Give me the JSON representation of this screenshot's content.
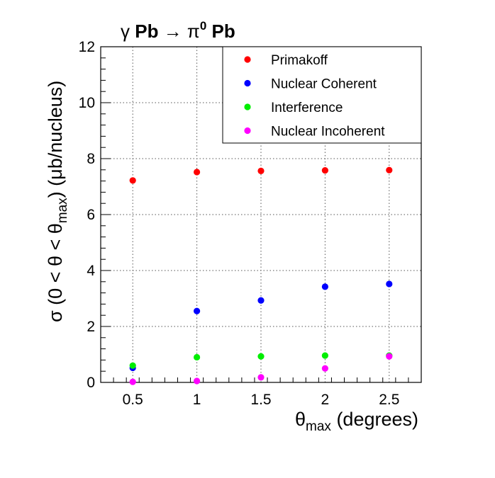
{
  "chart_data": {
    "type": "scatter",
    "title": {
      "part1": "γ",
      "part2": " Pb ",
      "arrow": "→",
      "pi": " π",
      "sup": "0",
      "part3": " Pb"
    },
    "xlabel": {
      "main": "θ",
      "sub": "max",
      "rest": " (degrees)"
    },
    "ylabel": {
      "pre": "σ (0 < θ < θ",
      "sub": "max",
      "post": ") (μb/nucleus)"
    },
    "xlim": [
      0.25,
      2.75
    ],
    "ylim": [
      0,
      12
    ],
    "xticks": [
      0.5,
      1,
      1.5,
      2,
      2.5
    ],
    "xtick_labels": [
      "0.5",
      "1",
      "1.5",
      "2",
      "2.5"
    ],
    "yticks": [
      0,
      2,
      4,
      6,
      8,
      10,
      12
    ],
    "ytick_labels": [
      "0",
      "2",
      "4",
      "6",
      "8",
      "10",
      "12"
    ],
    "grid": true,
    "legend_position": "top-right",
    "x": [
      0.5,
      1,
      1.5,
      2,
      2.5
    ],
    "series": [
      {
        "name": "Primakoff",
        "color": "#ff0000",
        "values": [
          7.22,
          7.52,
          7.56,
          7.58,
          7.59
        ]
      },
      {
        "name": "Nuclear Coherent",
        "color": "#0000ff",
        "values": [
          0.52,
          2.55,
          2.93,
          3.42,
          3.52
        ]
      },
      {
        "name": "Interference",
        "color": "#00ee00",
        "values": [
          0.6,
          0.9,
          0.93,
          0.96,
          0.96
        ]
      },
      {
        "name": "Nuclear Incoherent",
        "color": "#ff00ff",
        "values": [
          0.02,
          0.05,
          0.18,
          0.5,
          0.93
        ]
      }
    ]
  }
}
